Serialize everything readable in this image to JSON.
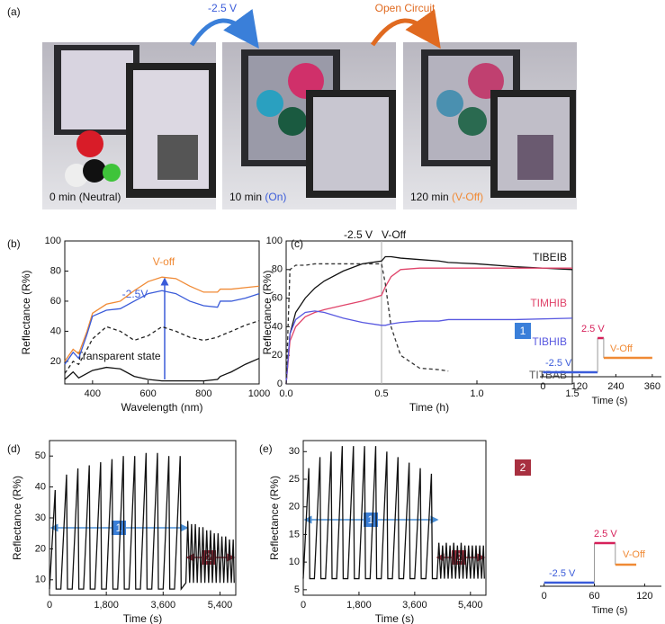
{
  "panel_labels": [
    "(a)",
    "(b)",
    "(c)",
    "(d)",
    "(e)"
  ],
  "panel_a": {
    "transitions": [
      "-2.5 V",
      "Open Circuit"
    ],
    "photos": [
      {
        "time": "0 min",
        "state": "(Neutral)"
      },
      {
        "time": "10 min",
        "state": "(On)"
      },
      {
        "time": "120 min",
        "state": "(V-Off)"
      }
    ]
  },
  "chart_data": [
    {
      "type": "line",
      "xlabel": "Wavelength (nm)",
      "ylabel": "Reflectance (R%)",
      "xlim": [
        300,
        1000
      ],
      "xticks": [
        400,
        600,
        800,
        1000
      ],
      "ylim": [
        5,
        100
      ],
      "yticks": [
        20,
        40,
        60,
        80,
        100
      ],
      "x": [
        300,
        330,
        350,
        380,
        400,
        450,
        500,
        550,
        600,
        650,
        700,
        750,
        800,
        850,
        860,
        900,
        950,
        1000
      ],
      "series": [
        {
          "name": "V-off",
          "color": "#f08a35",
          "linestyle": "solid",
          "values": [
            20,
            28,
            25,
            40,
            52,
            58,
            60,
            67,
            73,
            76,
            75,
            70,
            66,
            66,
            68,
            68,
            69,
            70
          ]
        },
        {
          "name": "-2.5V",
          "color": "#3a5bd9",
          "linestyle": "solid",
          "values": [
            18,
            26,
            22,
            38,
            50,
            54,
            55,
            60,
            65,
            67,
            65,
            60,
            57,
            56,
            60,
            60,
            62,
            65
          ]
        },
        {
          "color": "#222222",
          "linestyle": "dashed",
          "values": [
            12,
            20,
            18,
            28,
            35,
            43,
            40,
            34,
            37,
            43,
            40,
            36,
            34,
            36,
            37,
            40,
            44,
            47
          ]
        },
        {
          "name": "Transparent state",
          "color": "#111111",
          "linestyle": "solid",
          "values": [
            8,
            13,
            9,
            12,
            14,
            16,
            15,
            10,
            8,
            7,
            7,
            7,
            7,
            8,
            10,
            13,
            18,
            22
          ]
        }
      ]
    },
    {
      "type": "line",
      "xlabel": "Time (h)",
      "ylabel": "Reflectance (R%)",
      "annotations": [
        "-2.5 V",
        "V-Off"
      ],
      "xlim": [
        0,
        1.5
      ],
      "xticks": [
        {
          "value": 0,
          "label": "0.0"
        },
        0.5,
        {
          "value": 1,
          "label": "1.0"
        },
        1.5
      ],
      "ylim": [
        0,
        100
      ],
      "yticks": [
        0,
        20,
        40,
        60,
        80,
        100
      ],
      "x": [
        0,
        0.02,
        0.05,
        0.1,
        0.15,
        0.2,
        0.3,
        0.4,
        0.5,
        0.52,
        0.55,
        0.6,
        0.7,
        0.8,
        0.85,
        1.0,
        1.2,
        1.5
      ],
      "series": [
        {
          "name": "TIBEIB",
          "color": "#111111",
          "linestyle": "solid",
          "values": [
            0,
            35,
            50,
            60,
            67,
            72,
            79,
            84,
            86,
            89,
            89,
            88,
            87,
            86,
            85,
            84,
            82,
            80
          ]
        },
        {
          "name": "TIMHIB",
          "color": "#e0446a",
          "linestyle": "solid",
          "values": [
            0,
            30,
            40,
            47,
            50,
            52,
            55,
            58,
            62,
            68,
            75,
            80,
            81,
            81,
            81,
            81,
            81,
            81
          ]
        },
        {
          "name": "TIBHIB",
          "color": "#5858e0",
          "linestyle": "solid",
          "values": [
            0,
            35,
            45,
            50,
            51,
            50,
            46,
            43,
            41,
            41,
            42,
            43,
            44,
            44,
            45,
            45,
            45,
            46
          ]
        },
        {
          "name": "TITBAB",
          "color": "#333333",
          "linestyle": "dashed",
          "values": [
            0,
            80,
            83,
            83,
            84,
            84,
            84,
            84,
            84,
            70,
            40,
            20,
            11,
            10,
            9,
            null,
            null,
            null
          ]
        }
      ]
    },
    {
      "type": "line",
      "xlabel": "Time (s)",
      "ylabel": "Reflectance (R%)",
      "annotations": [
        "1",
        "2"
      ],
      "xlim": [
        0,
        5900
      ],
      "xticks": [
        0,
        {
          "value": 1800,
          "label": "1,800"
        },
        {
          "value": 3600,
          "label": "3,600"
        },
        {
          "value": 5400,
          "label": "5,400"
        }
      ],
      "ylim": [
        5,
        55
      ],
      "yticks": [
        10,
        20,
        30,
        40,
        50
      ],
      "x": [
        0,
        180,
        210,
        360,
        540,
        570,
        720,
        900,
        930,
        1080,
        1260,
        1290,
        1440,
        1620,
        1650,
        1800,
        1980,
        2010,
        2160,
        2340,
        2370,
        2520,
        2700,
        2730,
        2880,
        3060,
        3090,
        3240,
        3420,
        3450,
        3600,
        3780,
        3810,
        3960,
        4140,
        4170,
        4320,
        4380,
        4440,
        4500,
        4560,
        4620,
        4680,
        4740,
        4800,
        4860,
        4920,
        4980,
        5040,
        5100,
        5160,
        5220,
        5280,
        5340,
        5400,
        5460,
        5520,
        5580,
        5640,
        5700,
        5760,
        5820,
        5850
      ],
      "series": [
        {
          "color": "#111111",
          "linestyle": "solid",
          "values": [
            7,
            39,
            7,
            7,
            44,
            7,
            7,
            46,
            7,
            7,
            47,
            7,
            7,
            48,
            7,
            7,
            49,
            7,
            7,
            50,
            7,
            7,
            50,
            7,
            7,
            51,
            7,
            7,
            51,
            7,
            7,
            50,
            7,
            7,
            50,
            7,
            9,
            29,
            9,
            28,
            9,
            28,
            9,
            27,
            9,
            27,
            9,
            26,
            9,
            26,
            9,
            25,
            9,
            25,
            9,
            24,
            9,
            24,
            9,
            23,
            9,
            23,
            9
          ]
        }
      ]
    },
    {
      "type": "line",
      "xlabel": "Time (s)",
      "ylabel": "Reflectance (R%)",
      "annotations": [
        "1",
        "2"
      ],
      "xlim": [
        0,
        5900
      ],
      "xticks": [
        0,
        {
          "value": 1800,
          "label": "1,800"
        },
        {
          "value": 3600,
          "label": "3,600"
        },
        {
          "value": 5400,
          "label": "5,400"
        }
      ],
      "ylim": [
        4,
        32
      ],
      "yticks": [
        5,
        10,
        15,
        20,
        25,
        30
      ],
      "x": [
        0,
        180,
        210,
        360,
        540,
        570,
        720,
        900,
        930,
        1080,
        1260,
        1290,
        1440,
        1620,
        1650,
        1800,
        1980,
        2010,
        2160,
        2340,
        2370,
        2520,
        2700,
        2730,
        2880,
        3060,
        3090,
        3240,
        3420,
        3450,
        3600,
        3780,
        3810,
        3960,
        4140,
        4170,
        4320,
        4380,
        4440,
        4500,
        4560,
        4620,
        4680,
        4740,
        4800,
        4860,
        4920,
        4980,
        5040,
        5100,
        5160,
        5220,
        5280,
        5340,
        5400,
        5460,
        5520,
        5580,
        5640,
        5700,
        5760,
        5820,
        5850
      ],
      "series": [
        {
          "color": "#111111",
          "linestyle": "solid",
          "values": [
            7,
            27,
            7,
            7,
            29,
            7,
            7,
            30,
            7,
            7,
            31,
            7,
            7,
            31,
            7,
            7,
            31,
            7,
            7,
            31,
            7,
            7,
            30,
            7,
            7,
            29,
            7,
            7,
            28,
            7,
            7,
            27,
            7,
            7,
            26,
            7,
            7,
            13.5,
            7,
            13,
            7,
            13.5,
            7,
            13,
            7,
            13.5,
            7,
            13,
            7,
            13.5,
            7,
            13,
            7,
            13,
            7,
            13,
            7,
            13,
            7,
            13,
            7,
            13,
            7
          ]
        }
      ]
    },
    {
      "type": "step",
      "title": "1",
      "xlabel": "Time (s)",
      "xlim": [
        -10,
        390
      ],
      "xticks": [
        0,
        120,
        240,
        360
      ],
      "segments": [
        {
          "label": "-2.5 V",
          "color": "#3a5bd9",
          "x": [
            0,
            180
          ]
        },
        {
          "label": "2.5 V",
          "color": "#d6205a",
          "x": [
            180,
            200
          ]
        },
        {
          "label": "V-Off",
          "color": "#f08a35",
          "x": [
            200,
            360
          ]
        }
      ]
    },
    {
      "type": "step",
      "title": "2",
      "xlabel": "Time (s)",
      "xlim": [
        -5,
        140
      ],
      "xticks": [
        0,
        60,
        120
      ],
      "segments": [
        {
          "label": "-2.5 V",
          "color": "#3a5bd9",
          "x": [
            0,
            60
          ]
        },
        {
          "label": "2.5 V",
          "color": "#d6205a",
          "x": [
            60,
            85
          ]
        },
        {
          "label": "V-Off",
          "color": "#f08a35",
          "x": [
            85,
            110
          ]
        }
      ]
    }
  ]
}
